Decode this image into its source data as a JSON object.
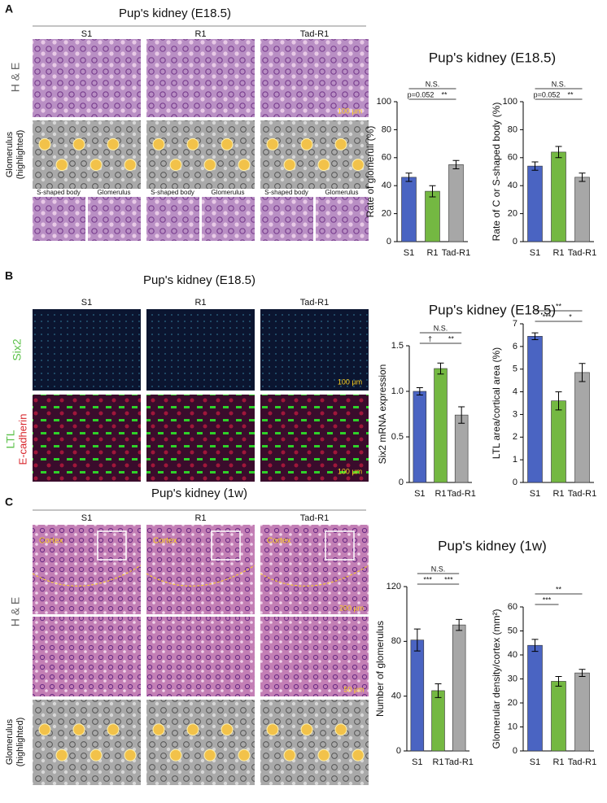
{
  "panels": [
    {
      "letter": "A",
      "title": "Pup's kidney (E18.5)",
      "columns": [
        "S1",
        "R1",
        "Tad-R1"
      ],
      "row_labels": [
        "H & E",
        "Glomerulus",
        "(highlighted)"
      ],
      "inset_labels": [
        "S-shaped body",
        "Glomerulus",
        "S-shaped body",
        "Glomerulus",
        "S-shaped body",
        "Glomerulus"
      ],
      "scale_bars": [
        "100 µm"
      ]
    },
    {
      "letter": "B",
      "title": "Pup's kidney (E18.5)",
      "columns": [
        "S1",
        "R1",
        "Tad-R1"
      ],
      "row_labels": [
        "Six2",
        "LTL",
        "E-cadherin"
      ],
      "scale_bars": [
        "100 µm",
        "100 µm"
      ]
    },
    {
      "letter": "C",
      "title": "Pup's kidney (1w)",
      "columns": [
        "S1",
        "R1",
        "Tad-R1"
      ],
      "row_labels": [
        "H & E",
        "Glomerulus",
        "(highlighted)"
      ],
      "region_labels": [
        "Cortex",
        "Cortex",
        "Cortex"
      ],
      "scale_bars": [
        "200 µm",
        "50 µm"
      ]
    }
  ],
  "chart_data": [
    {
      "type": "bar",
      "title": "Pup's kidney (E18.5)",
      "y_label": "Rate of glomeruli (%)",
      "categories": [
        "S1",
        "R1",
        "Tad-R1"
      ],
      "values": [
        46,
        36,
        55
      ],
      "errors": [
        3,
        4,
        3
      ],
      "colors": [
        "#4a64c2",
        "#74b842",
        "#a7a7a7"
      ],
      "ylim": [
        0,
        100
      ],
      "yticks": [
        0,
        20,
        40,
        60,
        80,
        100
      ],
      "comparisons": [
        {
          "pair": [
            "S1",
            "Tad-R1"
          ],
          "label": "N.S."
        },
        {
          "pair": [
            "S1",
            "R1"
          ],
          "label": "p=0.052"
        },
        {
          "pair": [
            "R1",
            "Tad-R1"
          ],
          "label": "**"
        }
      ]
    },
    {
      "type": "bar",
      "y_label": "Rate of C or S-shaped body (%)",
      "categories": [
        "S1",
        "R1",
        "Tad-R1"
      ],
      "values": [
        54,
        64,
        46
      ],
      "errors": [
        3,
        4,
        3
      ],
      "colors": [
        "#4a64c2",
        "#74b842",
        "#a7a7a7"
      ],
      "ylim": [
        0,
        100
      ],
      "yticks": [
        0,
        20,
        40,
        60,
        80,
        100
      ],
      "comparisons": [
        {
          "pair": [
            "S1",
            "Tad-R1"
          ],
          "label": "N.S."
        },
        {
          "pair": [
            "S1",
            "R1"
          ],
          "label": "p=0.052"
        },
        {
          "pair": [
            "R1",
            "Tad-R1"
          ],
          "label": "**"
        }
      ]
    },
    {
      "type": "bar",
      "title": "Pup's kidney (E18.5)",
      "y_label": "Six2 mRNA expression",
      "categories": [
        "S1",
        "R1",
        "Tad-R1"
      ],
      "values": [
        1.0,
        1.25,
        0.74
      ],
      "errors": [
        0.04,
        0.06,
        0.09
      ],
      "colors": [
        "#4a64c2",
        "#74b842",
        "#a7a7a7"
      ],
      "ylim": [
        0,
        1.5
      ],
      "yticks": [
        0,
        0.5,
        {
          "value": 1,
          "label": "1.0"
        },
        1.5
      ],
      "comparisons": [
        {
          "pair": [
            "S1",
            "Tad-R1"
          ],
          "label": "N.S."
        },
        {
          "pair": [
            "S1",
            "R1"
          ],
          "label": "†"
        },
        {
          "pair": [
            "R1",
            "Tad-R1"
          ],
          "label": "**"
        }
      ]
    },
    {
      "type": "bar",
      "y_label": "LTL area/cortical area (%)",
      "categories": [
        "S1",
        "R1",
        "Tad-R1"
      ],
      "values": [
        6.45,
        3.6,
        4.85
      ],
      "errors": [
        0.15,
        0.4,
        0.4
      ],
      "colors": [
        "#4a64c2",
        "#74b842",
        "#a7a7a7"
      ],
      "ylim": [
        0,
        7
      ],
      "yticks": [
        0,
        1,
        2,
        3,
        4,
        5,
        6,
        7
      ],
      "comparisons": [
        {
          "pair": [
            "S1",
            "Tad-R1"
          ],
          "label": "**"
        },
        {
          "pair": [
            "S1",
            "R1"
          ],
          "label": "***"
        },
        {
          "pair": [
            "R1",
            "Tad-R1"
          ],
          "label": "*"
        }
      ]
    },
    {
      "type": "bar",
      "title": "Pup's kidney (1w)",
      "y_label": "Number of glomerulus",
      "categories": [
        "S1",
        "R1",
        "Tad-R1"
      ],
      "values": [
        81,
        44,
        92
      ],
      "errors": [
        8,
        5,
        4
      ],
      "colors": [
        "#4a64c2",
        "#74b842",
        "#a7a7a7"
      ],
      "ylim": [
        0,
        120
      ],
      "yticks": [
        0,
        40,
        80,
        120
      ],
      "comparisons": [
        {
          "pair": [
            "S1",
            "Tad-R1"
          ],
          "label": "N.S."
        },
        {
          "pair": [
            "S1",
            "R1"
          ],
          "label": "***"
        },
        {
          "pair": [
            "R1",
            "Tad-R1"
          ],
          "label": "***"
        }
      ]
    },
    {
      "type": "bar",
      "y_label": "Glomerular density/cortex (mm²)",
      "categories": [
        "S1",
        "R1",
        "Tad-R1"
      ],
      "values": [
        44,
        29,
        32.5
      ],
      "errors": [
        2.5,
        2,
        1.5
      ],
      "colors": [
        "#4a64c2",
        "#74b842",
        "#a7a7a7"
      ],
      "ylim": [
        0,
        60
      ],
      "yticks": [
        0,
        10,
        20,
        30,
        40,
        50,
        60
      ],
      "comparisons": [
        {
          "pair": [
            "S1",
            "Tad-R1"
          ],
          "label": "**"
        },
        {
          "pair": [
            "S1",
            "R1"
          ],
          "label": "***"
        }
      ]
    }
  ]
}
